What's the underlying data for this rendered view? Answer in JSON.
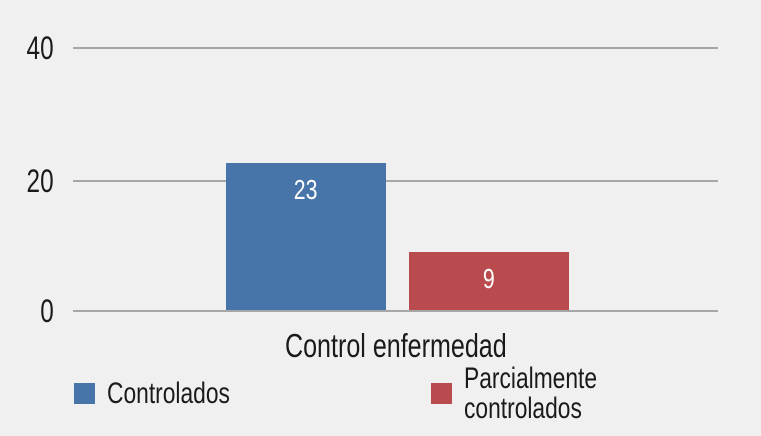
{
  "chart_data": {
    "type": "bar",
    "categories": [
      "Control enfermedad"
    ],
    "series": [
      {
        "name": "Controlados",
        "values": [
          23
        ],
        "color": "#4775A9"
      },
      {
        "name": "Parcialmente controlados",
        "values": [
          9
        ],
        "color": "#B94B4E"
      }
    ],
    "xlabel": "Control enfermedad",
    "ylabel": "",
    "ylim": [
      0,
      40
    ],
    "yticks": [
      0,
      20,
      40
    ],
    "grid": true,
    "legend_position": "bottom",
    "data_labels": true
  },
  "colors": {
    "background": "#F0F0F0",
    "gridline": "#A6A6A6",
    "text": "#1A1A1A",
    "bar_label_text": "#FFFFFF"
  }
}
